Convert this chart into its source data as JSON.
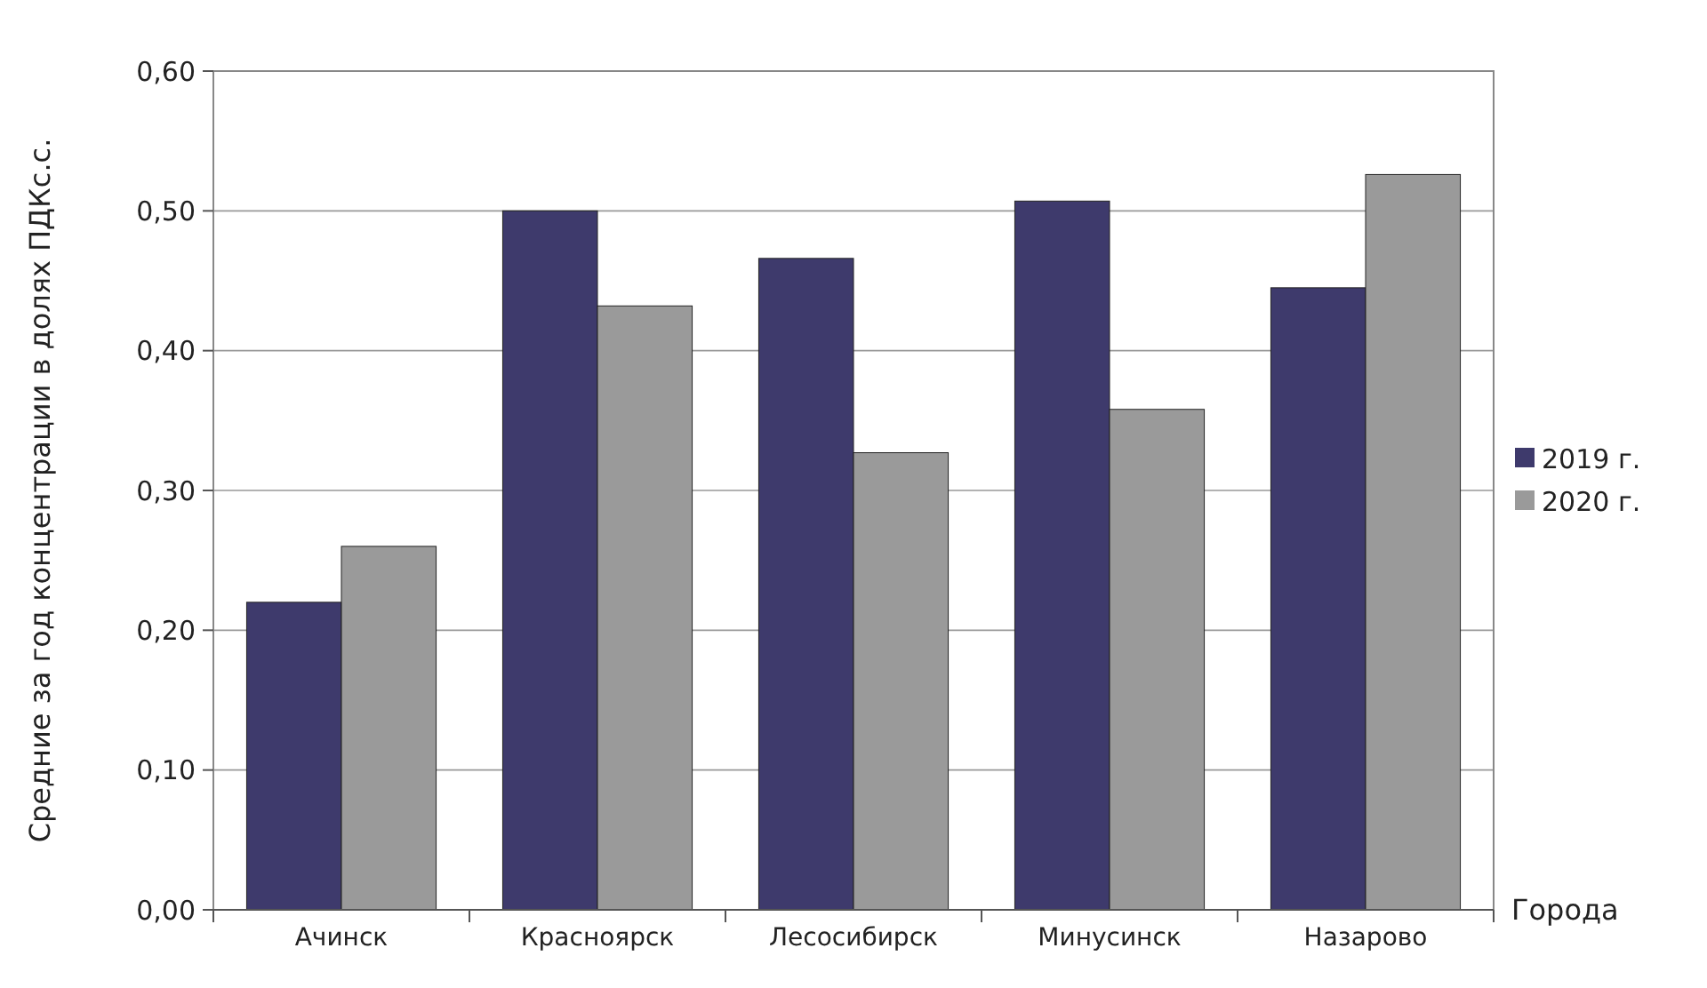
{
  "chart_data": {
    "type": "bar",
    "xlabel": "Города",
    "ylabel": "Средние за год концентрации в долях ПДКс.с.",
    "categories": [
      "Ачинск",
      "Красноярск",
      "Лесосибирск",
      "Минусинск",
      "Назарово"
    ],
    "series": [
      {
        "name": "2019 г.",
        "color": "#3e3a6c",
        "values": [
          0.22,
          0.5,
          0.466,
          0.507,
          0.445
        ]
      },
      {
        "name": "2020 г.",
        "color": "#9a9a9a",
        "values": [
          0.26,
          0.432,
          0.327,
          0.358,
          0.526
        ]
      }
    ],
    "ylim": [
      0,
      0.6
    ],
    "yticks": [
      {
        "value": 0,
        "label": "0,00"
      },
      {
        "value": 0.1,
        "label": "0,10"
      },
      {
        "value": 0.2,
        "label": "0,20"
      },
      {
        "value": 0.3,
        "label": "0,30"
      },
      {
        "value": 0.4,
        "label": "0,40"
      },
      {
        "value": 0.5,
        "label": "0,50"
      },
      {
        "value": 0.6,
        "label": "0,60"
      }
    ],
    "grid": "y",
    "legend": "right"
  }
}
